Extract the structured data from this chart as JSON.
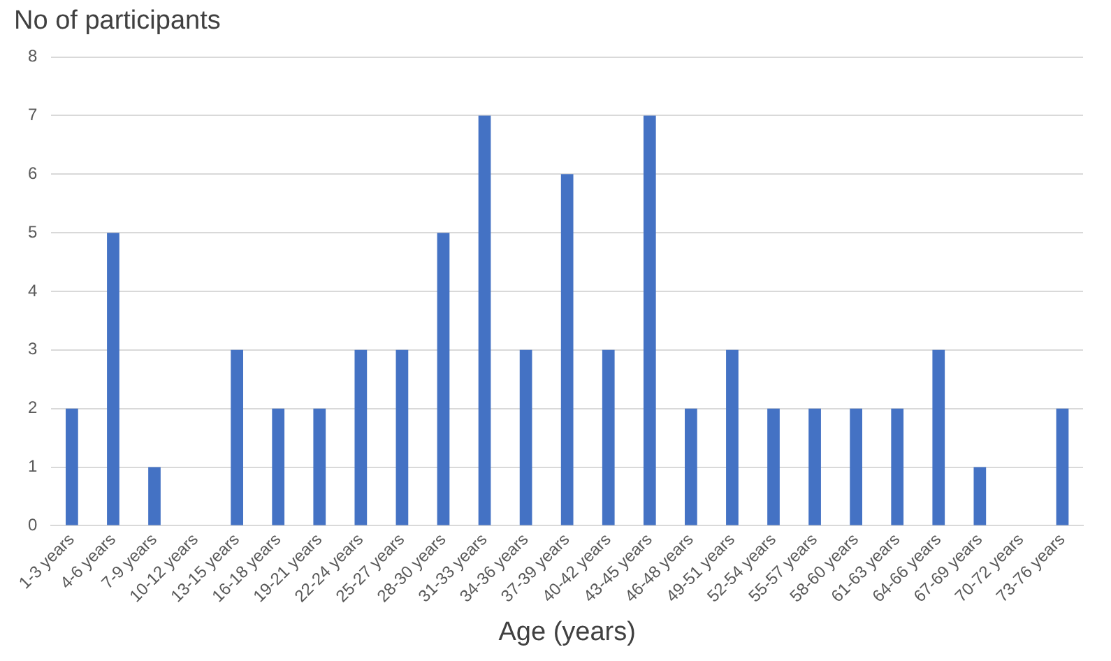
{
  "chart_data": {
    "type": "bar",
    "ylabel": "No of participants",
    "xlabel": "Age (years)",
    "categories": [
      "1-3 years",
      "4-6 years",
      "7-9 years",
      "10-12 years",
      "13-15 years",
      "16-18 years",
      "19-21 years",
      "22-24 years",
      "25-27 years",
      "28-30 years",
      "31-33 years",
      "34-36 years",
      "37-39 years",
      "40-42 years",
      "43-45 years",
      "46-48 years",
      "49-51 years",
      "52-54 years",
      "55-57 years",
      "58-60 years",
      "61-63 years",
      "64-66 years",
      "67-69 years",
      "70-72 years",
      "73-76 years"
    ],
    "values": [
      2,
      5,
      1,
      0,
      3,
      2,
      2,
      3,
      3,
      5,
      7,
      3,
      6,
      3,
      7,
      2,
      3,
      2,
      2,
      2,
      2,
      3,
      1,
      0,
      2
    ],
    "color": "#4472c4",
    "ylim": [
      0,
      8
    ],
    "yticks": [
      0,
      1,
      2,
      3,
      4,
      5,
      6,
      7,
      8
    ],
    "grid": "y",
    "legend": false
  }
}
